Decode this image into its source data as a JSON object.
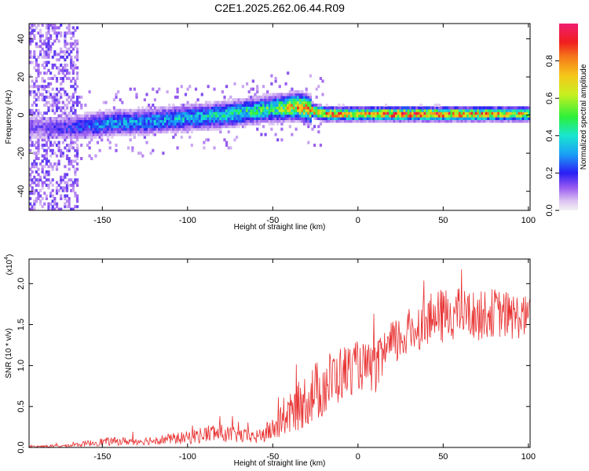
{
  "figure": {
    "title": "C2E1.2025.262.06.44.R09"
  },
  "chart_data": [
    {
      "type": "heatmap",
      "name": "spectrogram",
      "xlabel": "Height of straight line (km)",
      "ylabel": "Frequency (Hz)",
      "xlim": [
        -193,
        101
      ],
      "ylim": [
        -50,
        48
      ],
      "x_ticks": [
        -150,
        -100,
        -50,
        0,
        50,
        100
      ],
      "y_ticks": [
        -40,
        -20,
        0,
        20,
        40
      ],
      "grid": false,
      "colorbar": {
        "label": "Normalized spectral amplitude",
        "range": [
          0.0,
          1.0
        ],
        "ticks": [
          0.0,
          0.2,
          0.4,
          0.6,
          0.8
        ]
      },
      "ridge": {
        "description_points_height_km": [
          -185,
          -165,
          -150,
          -125,
          -100,
          -75,
          -50,
          -35,
          -28,
          -20,
          0,
          25,
          50,
          75,
          100
        ],
        "center_frequency_hz": [
          -7,
          -7,
          -5,
          -4,
          -2,
          0,
          3,
          4,
          2,
          0,
          0,
          0,
          0,
          0,
          0
        ],
        "peak_amplitude": [
          0.15,
          0.25,
          0.35,
          0.35,
          0.4,
          0.45,
          0.55,
          0.85,
          0.9,
          0.9,
          0.8,
          0.95,
          0.9,
          0.85,
          0.75
        ]
      }
    },
    {
      "type": "line",
      "name": "snr",
      "xlabel": "Height of straight line (km)",
      "ylabel": "SNR (10 * v/v)",
      "exponent_label": "(x10",
      "exponent_power": "4",
      "exponent_close": ")",
      "xlim": [
        -193,
        101
      ],
      "ylim": [
        0,
        2.3
      ],
      "x_ticks": [
        -150,
        -100,
        -50,
        0,
        50,
        100
      ],
      "y_ticks": [
        "0.0",
        "0.5",
        "1.0",
        "1.5",
        "2.0"
      ],
      "y_tick_values": [
        0.0,
        0.5,
        1.0,
        1.5,
        2.0
      ],
      "color": "#e83030",
      "series": [
        {
          "name": "SNR",
          "envelope_x": [
            -193,
            -170,
            -150,
            -125,
            -100,
            -85,
            -75,
            -60,
            -50,
            -40,
            -30,
            -20,
            -10,
            0,
            10,
            20,
            30,
            40,
            50,
            60,
            70,
            80,
            90,
            100
          ],
          "envelope_mean": [
            0.01,
            0.02,
            0.07,
            0.08,
            0.12,
            0.18,
            0.16,
            0.12,
            0.22,
            0.4,
            0.6,
            0.75,
            0.9,
            1.0,
            0.95,
            1.25,
            1.4,
            1.55,
            1.6,
            1.65,
            1.6,
            1.65,
            1.6,
            1.6
          ],
          "envelope_amp": [
            0.01,
            0.02,
            0.05,
            0.05,
            0.08,
            0.12,
            0.1,
            0.08,
            0.15,
            0.25,
            0.35,
            0.4,
            0.35,
            0.3,
            0.3,
            0.3,
            0.3,
            0.3,
            0.35,
            0.3,
            0.3,
            0.3,
            0.3,
            0.25
          ]
        }
      ]
    }
  ]
}
